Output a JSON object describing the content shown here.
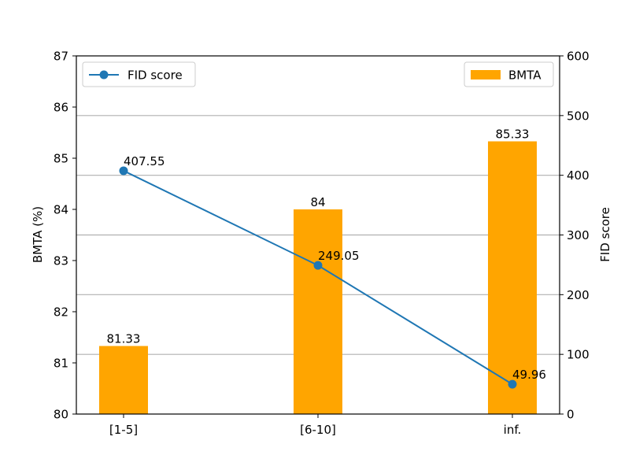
{
  "chart_data": {
    "type": "bar",
    "categories": [
      "[1-5]",
      "[6-10]",
      "inf."
    ],
    "left_axis": {
      "label": "BMTA (%)",
      "ylim": [
        80,
        87
      ],
      "ticks": [
        80,
        81,
        82,
        83,
        84,
        85,
        86,
        87
      ]
    },
    "right_axis": {
      "label": "FID score",
      "ylim": [
        0,
        600
      ],
      "ticks": [
        0,
        100,
        200,
        300,
        400,
        500,
        600
      ]
    },
    "grid": "horizontal, right axis",
    "series": [
      {
        "name": "BMTA",
        "kind": "bar",
        "axis": "left",
        "color": "#FFA500",
        "values": [
          81.33,
          84,
          85.33
        ],
        "labels": [
          "81.33",
          "84",
          "85.33"
        ]
      },
      {
        "name": "FID score",
        "kind": "line",
        "axis": "right",
        "color": "#1F77B4",
        "values": [
          407.55,
          249.05,
          49.96
        ],
        "labels": [
          "407.55",
          "249.05",
          "49.96"
        ]
      }
    ],
    "legends": {
      "line": "top-left",
      "bar": "top-right"
    }
  }
}
